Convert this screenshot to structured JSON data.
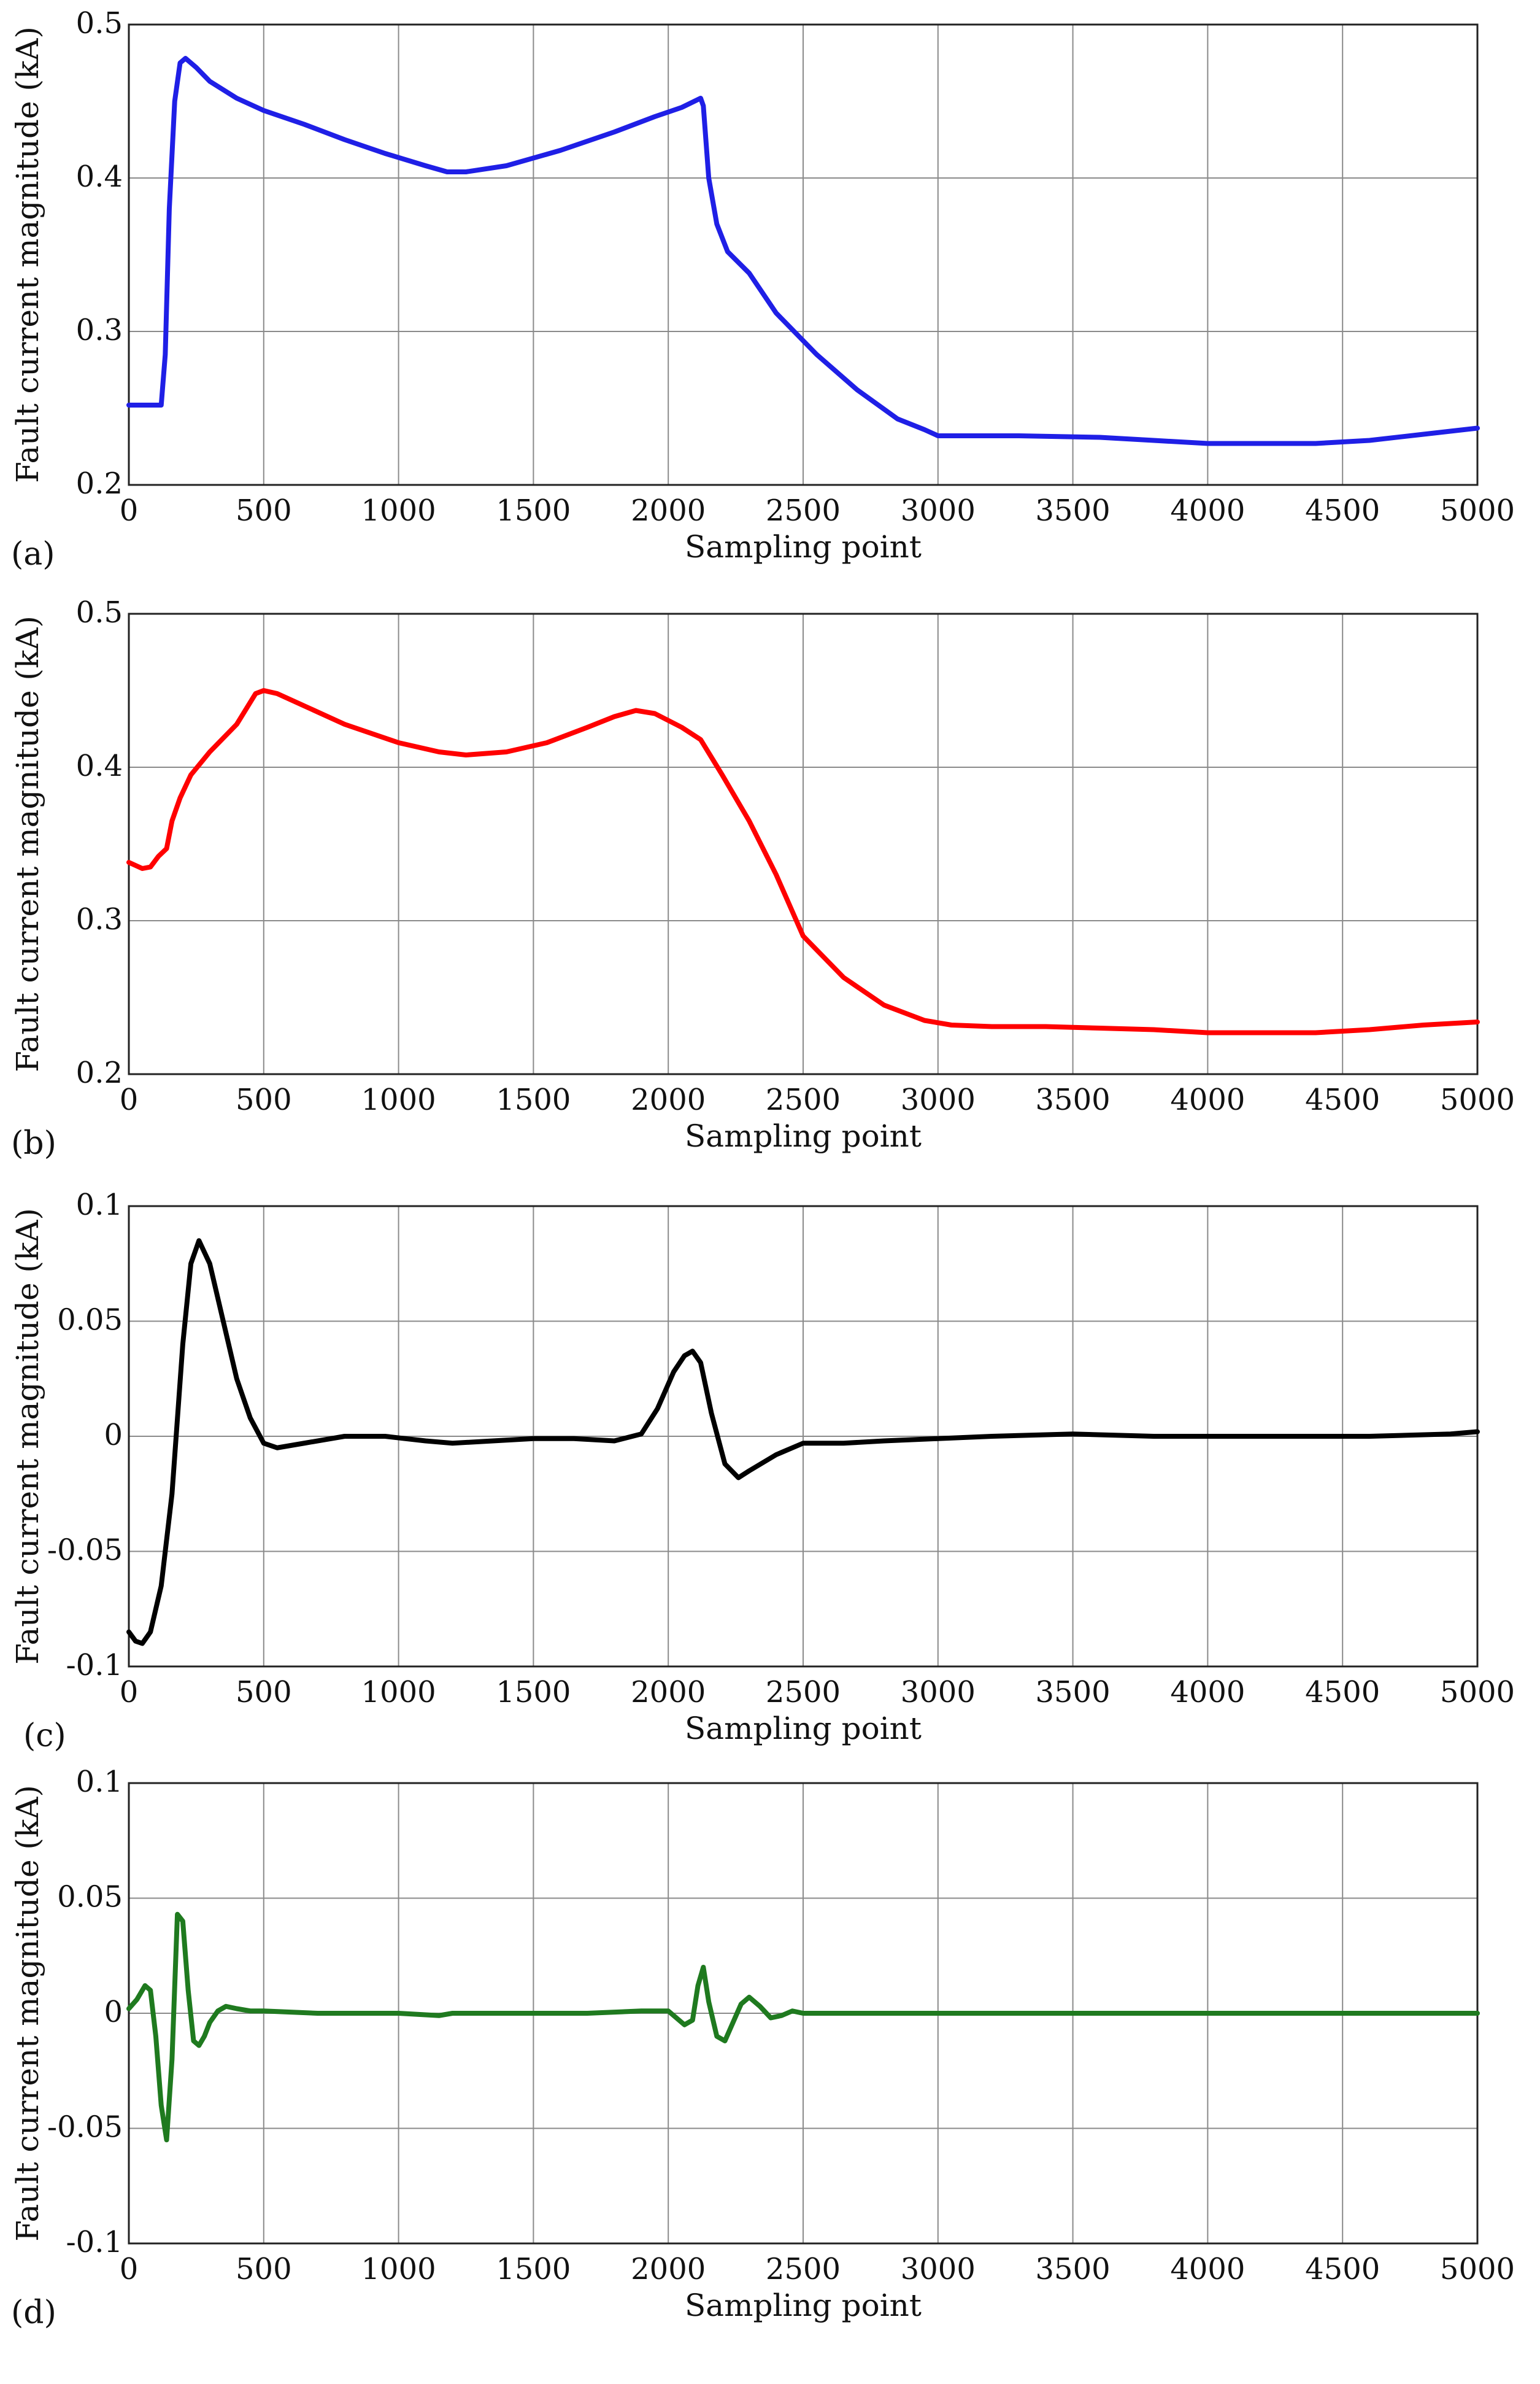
{
  "chart_data": [
    {
      "type": "line",
      "panel_label": "(a)",
      "xlabel": "Sampling point",
      "ylabel": "Fault current magnitude (kA)",
      "xlim": [
        0,
        5000
      ],
      "ylim": [
        0.2,
        0.5
      ],
      "x_ticks": [
        0,
        500,
        1000,
        1500,
        2000,
        2500,
        3000,
        3500,
        4000,
        4500,
        5000
      ],
      "y_ticks": [
        0.2,
        0.3,
        0.4,
        0.5
      ],
      "tick_labels_x": [
        "0",
        "500",
        "1000",
        "1500",
        "2000",
        "2500",
        "3000",
        "3500",
        "4000",
        "4500",
        "5000"
      ],
      "tick_labels_y": [
        "0.2",
        "0.3",
        "0.4",
        "0.5"
      ],
      "color": "#1f1fe6",
      "series": [
        {
          "name": "(a)",
          "x": [
            0,
            120,
            135,
            150,
            170,
            190,
            210,
            250,
            300,
            400,
            500,
            650,
            800,
            950,
            1100,
            1180,
            1250,
            1400,
            1600,
            1800,
            1950,
            2050,
            2120,
            2130,
            2150,
            2180,
            2220,
            2300,
            2400,
            2550,
            2700,
            2850,
            2950,
            3000,
            3100,
            3300,
            3600,
            3800,
            4000,
            4200,
            4400,
            4600,
            4800,
            5000
          ],
          "values": [
            0.252,
            0.252,
            0.285,
            0.38,
            0.45,
            0.475,
            0.478,
            0.472,
            0.463,
            0.452,
            0.444,
            0.435,
            0.425,
            0.416,
            0.408,
            0.404,
            0.404,
            0.408,
            0.418,
            0.43,
            0.44,
            0.446,
            0.452,
            0.447,
            0.4,
            0.37,
            0.352,
            0.338,
            0.312,
            0.285,
            0.262,
            0.243,
            0.236,
            0.232,
            0.232,
            0.232,
            0.231,
            0.229,
            0.227,
            0.227,
            0.227,
            0.229,
            0.233,
            0.237
          ]
        }
      ]
    },
    {
      "type": "line",
      "panel_label": "(b)",
      "xlabel": "Sampling point",
      "ylabel": "Fault current magnitude (kA)",
      "xlim": [
        0,
        5000
      ],
      "ylim": [
        0.2,
        0.5
      ],
      "x_ticks": [
        0,
        500,
        1000,
        1500,
        2000,
        2500,
        3000,
        3500,
        4000,
        4500,
        5000
      ],
      "y_ticks": [
        0.2,
        0.3,
        0.4,
        0.5
      ],
      "tick_labels_x": [
        "0",
        "500",
        "1000",
        "1500",
        "2000",
        "2500",
        "3000",
        "3500",
        "4000",
        "4500",
        "5000"
      ],
      "tick_labels_y": [
        "0.2",
        "0.3",
        "0.4",
        "0.5"
      ],
      "color": "#ff0000",
      "series": [
        {
          "name": "(b)",
          "x": [
            0,
            50,
            80,
            110,
            140,
            160,
            190,
            230,
            300,
            400,
            470,
            500,
            550,
            650,
            800,
            1000,
            1150,
            1250,
            1400,
            1550,
            1700,
            1800,
            1880,
            1950,
            2050,
            2120,
            2200,
            2300,
            2400,
            2500,
            2650,
            2800,
            2950,
            3050,
            3200,
            3400,
            3600,
            3800,
            4000,
            4200,
            4400,
            4600,
            4800,
            5000
          ],
          "values": [
            0.338,
            0.334,
            0.335,
            0.342,
            0.347,
            0.365,
            0.38,
            0.395,
            0.41,
            0.428,
            0.448,
            0.45,
            0.448,
            0.44,
            0.428,
            0.416,
            0.41,
            0.408,
            0.41,
            0.416,
            0.426,
            0.433,
            0.437,
            0.435,
            0.426,
            0.418,
            0.395,
            0.365,
            0.33,
            0.29,
            0.263,
            0.245,
            0.235,
            0.232,
            0.231,
            0.231,
            0.23,
            0.229,
            0.227,
            0.227,
            0.227,
            0.229,
            0.232,
            0.234
          ]
        }
      ]
    },
    {
      "type": "line",
      "panel_label": "(c)",
      "xlabel": "Sampling point",
      "ylabel": "Fault current magnitude (kA)",
      "xlim": [
        0,
        5000
      ],
      "ylim": [
        -0.1,
        0.1
      ],
      "x_ticks": [
        0,
        500,
        1000,
        1500,
        2000,
        2500,
        3000,
        3500,
        4000,
        4500,
        5000
      ],
      "y_ticks": [
        -0.1,
        -0.05,
        0,
        0.05,
        0.1
      ],
      "tick_labels_x": [
        "0",
        "500",
        "1000",
        "1500",
        "2000",
        "2500",
        "3000",
        "3500",
        "4000",
        "4500",
        "5000"
      ],
      "tick_labels_y": [
        "-0.1",
        "-0.05",
        "0",
        "0.05",
        "0.1"
      ],
      "color": "#000000",
      "series": [
        {
          "name": "(c)",
          "x": [
            0,
            25,
            50,
            80,
            120,
            160,
            200,
            230,
            260,
            300,
            350,
            400,
            450,
            500,
            550,
            650,
            800,
            950,
            1100,
            1200,
            1350,
            1500,
            1650,
            1800,
            1900,
            1960,
            2020,
            2060,
            2090,
            2120,
            2160,
            2210,
            2260,
            2300,
            2400,
            2500,
            2650,
            2800,
            3000,
            3200,
            3500,
            3800,
            4200,
            4600,
            4900,
            5000
          ],
          "values": [
            -0.085,
            -0.089,
            -0.09,
            -0.085,
            -0.065,
            -0.025,
            0.04,
            0.075,
            0.085,
            0.075,
            0.05,
            0.025,
            0.008,
            -0.003,
            -0.005,
            -0.003,
            0.0,
            0.0,
            -0.002,
            -0.003,
            -0.002,
            -0.001,
            -0.001,
            -0.002,
            0.001,
            0.012,
            0.028,
            0.035,
            0.037,
            0.032,
            0.01,
            -0.012,
            -0.018,
            -0.015,
            -0.008,
            -0.003,
            -0.003,
            -0.002,
            -0.001,
            0.0,
            0.001,
            0.0,
            0.0,
            0.0,
            0.001,
            0.002
          ]
        }
      ]
    },
    {
      "type": "line",
      "panel_label": "(d)",
      "xlabel": "Sampling point",
      "ylabel": "Fault current magnitude (kA)",
      "xlim": [
        0,
        5000
      ],
      "ylim": [
        -0.1,
        0.1
      ],
      "x_ticks": [
        0,
        500,
        1000,
        1500,
        2000,
        2500,
        3000,
        3500,
        4000,
        4500,
        5000
      ],
      "y_ticks": [
        -0.1,
        -0.05,
        0,
        0.05,
        0.1
      ],
      "tick_labels_x": [
        "0",
        "500",
        "1000",
        "1500",
        "2000",
        "2500",
        "3000",
        "3500",
        "4000",
        "4500",
        "5000"
      ],
      "tick_labels_y": [
        "-0.1",
        "-0.05",
        "0",
        "0.05",
        "0.1"
      ],
      "color": "#1f7a1f",
      "series": [
        {
          "name": "(d)",
          "x": [
            0,
            30,
            60,
            80,
            100,
            120,
            140,
            160,
            180,
            200,
            220,
            240,
            260,
            280,
            300,
            330,
            360,
            400,
            450,
            500,
            700,
            1000,
            1150,
            1200,
            1400,
            1700,
            1900,
            2000,
            2060,
            2090,
            2110,
            2130,
            2150,
            2180,
            2210,
            2240,
            2270,
            2300,
            2340,
            2380,
            2420,
            2460,
            2500,
            2600,
            2700,
            2900,
            3500,
            4000,
            4500,
            5000
          ],
          "values": [
            0.002,
            0.006,
            0.012,
            0.01,
            -0.01,
            -0.04,
            -0.055,
            -0.02,
            0.043,
            0.04,
            0.01,
            -0.012,
            -0.014,
            -0.01,
            -0.004,
            0.001,
            0.003,
            0.002,
            0.001,
            0.001,
            0.0,
            0.0,
            -0.001,
            0.0,
            0.0,
            0.0,
            0.001,
            0.001,
            -0.005,
            -0.003,
            0.012,
            0.02,
            0.005,
            -0.01,
            -0.012,
            -0.004,
            0.004,
            0.007,
            0.003,
            -0.002,
            -0.001,
            0.001,
            0.0,
            0.0,
            0.0,
            0.0,
            0.0,
            0.0,
            0.0,
            0.0
          ]
        }
      ]
    }
  ]
}
